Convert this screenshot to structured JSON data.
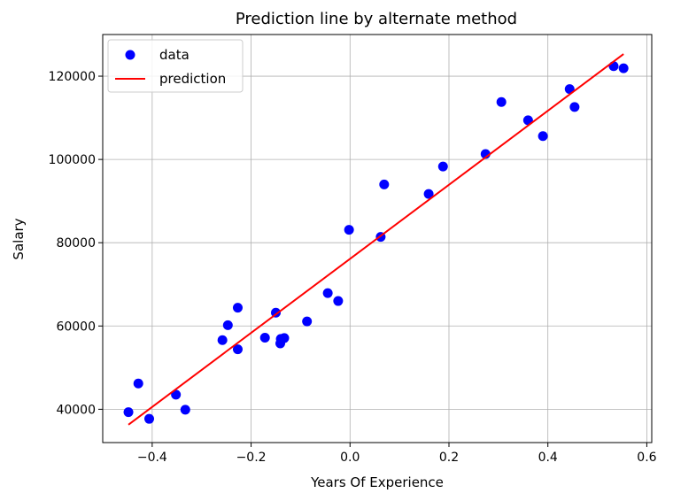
{
  "chart_data": {
    "type": "scatter",
    "title": "Prediction line by alternate method",
    "xlabel": "Years Of Experience",
    "ylabel": "Salary",
    "xlim": [
      -0.5,
      0.61
    ],
    "ylim": [
      32000,
      130000
    ],
    "xticks": [
      -0.4,
      -0.2,
      0.0,
      0.2,
      0.4,
      0.6
    ],
    "xtick_labels": [
      "−0.4",
      "−0.2",
      "0.0",
      "0.2",
      "0.4",
      "0.6"
    ],
    "yticks": [
      40000,
      60000,
      80000,
      100000,
      120000
    ],
    "ytick_labels": [
      "40000",
      "60000",
      "80000",
      "100000",
      "120000"
    ],
    "grid": true,
    "legend_position": "top-left",
    "colors": {
      "data": "#0000ff",
      "prediction": "#ff0000"
    },
    "series": [
      {
        "name": "data",
        "type": "scatter",
        "points": [
          [
            -0.448,
            39300
          ],
          [
            -0.428,
            46200
          ],
          [
            -0.406,
            37700
          ],
          [
            -0.352,
            43500
          ],
          [
            -0.333,
            39900
          ],
          [
            -0.258,
            56600
          ],
          [
            -0.247,
            60200
          ],
          [
            -0.227,
            54400
          ],
          [
            -0.227,
            64400
          ],
          [
            -0.172,
            57200
          ],
          [
            -0.15,
            63200
          ],
          [
            -0.141,
            55800
          ],
          [
            -0.14,
            56900
          ],
          [
            -0.133,
            57100
          ],
          [
            -0.087,
            61100
          ],
          [
            -0.045,
            67900
          ],
          [
            -0.024,
            66000
          ],
          [
            -0.002,
            83100
          ],
          [
            0.062,
            81400
          ],
          [
            0.069,
            94000
          ],
          [
            0.159,
            91700
          ],
          [
            0.188,
            98300
          ],
          [
            0.274,
            101300
          ],
          [
            0.306,
            113800
          ],
          [
            0.36,
            109400
          ],
          [
            0.39,
            105600
          ],
          [
            0.444,
            116900
          ],
          [
            0.454,
            112600
          ],
          [
            0.533,
            122400
          ],
          [
            0.553,
            121900
          ]
        ]
      },
      {
        "name": "prediction",
        "type": "line",
        "points": [
          [
            -0.448,
            36300
          ],
          [
            0.553,
            125300
          ]
        ]
      }
    ]
  }
}
